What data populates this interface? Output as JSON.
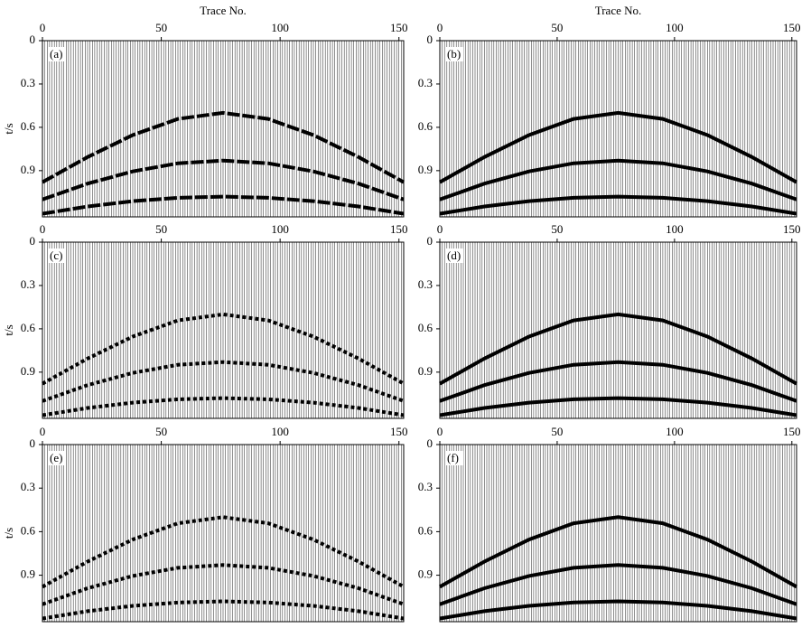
{
  "chart_data": [
    {
      "type": "wiggle",
      "title": "Trace No.",
      "ylabel": "t/s",
      "label": "(a)",
      "line_style": "dashed",
      "xlim": [
        0,
        152
      ],
      "xticks": [
        0,
        50,
        100,
        150
      ],
      "ylim": [
        0,
        1.22
      ],
      "yticks": [
        0,
        0.3,
        0.6,
        0.9
      ],
      "x": [
        0,
        19,
        38,
        57,
        76,
        95,
        114,
        133,
        152
      ],
      "series": [
        {
          "values": [
            0.98,
            0.806,
            0.654,
            0.542,
            0.5,
            0.542,
            0.654,
            0.806,
            0.98
          ]
        },
        {
          "values": [
            1.1,
            0.99,
            0.905,
            0.849,
            0.83,
            0.849,
            0.905,
            0.99,
            1.1
          ]
        },
        {
          "values": [
            1.198,
            1.148,
            1.111,
            1.088,
            1.08,
            1.088,
            1.111,
            1.148,
            1.198
          ]
        }
      ]
    },
    {
      "type": "wiggle",
      "title": "Trace No.",
      "label": "(b)",
      "line_style": "solid",
      "xlim": [
        0,
        152
      ],
      "xticks": [
        0,
        50,
        100,
        150
      ],
      "ylim": [
        0,
        1.22
      ],
      "yticks": [
        0,
        0.3,
        0.6,
        0.9
      ],
      "x": [
        0,
        19,
        38,
        57,
        76,
        95,
        114,
        133,
        152
      ],
      "series": [
        {
          "values": [
            0.98,
            0.806,
            0.654,
            0.542,
            0.5,
            0.542,
            0.654,
            0.806,
            0.98
          ]
        },
        {
          "values": [
            1.1,
            0.99,
            0.905,
            0.849,
            0.83,
            0.849,
            0.905,
            0.99,
            1.1
          ]
        },
        {
          "values": [
            1.198,
            1.148,
            1.111,
            1.088,
            1.08,
            1.088,
            1.111,
            1.148,
            1.198
          ]
        }
      ]
    },
    {
      "type": "wiggle",
      "ylabel": "t/s",
      "label": "(c)",
      "line_style": "dotted",
      "xlim": [
        0,
        152
      ],
      "xticks": [
        0,
        50,
        100,
        150
      ],
      "ylim": [
        0,
        1.22
      ],
      "yticks": [
        0,
        0.3,
        0.6,
        0.9
      ],
      "x": [
        0,
        19,
        38,
        57,
        76,
        95,
        114,
        133,
        152
      ],
      "series": [
        {
          "values": [
            0.98,
            0.806,
            0.654,
            0.542,
            0.5,
            0.542,
            0.654,
            0.806,
            0.98
          ]
        },
        {
          "values": [
            1.1,
            0.99,
            0.905,
            0.849,
            0.83,
            0.849,
            0.905,
            0.99,
            1.1
          ]
        },
        {
          "values": [
            1.198,
            1.148,
            1.111,
            1.088,
            1.08,
            1.088,
            1.111,
            1.148,
            1.198
          ]
        }
      ]
    },
    {
      "type": "wiggle",
      "label": "(d)",
      "line_style": "solid",
      "xlim": [
        0,
        152
      ],
      "xticks": [
        0,
        50,
        100,
        150
      ],
      "ylim": [
        0,
        1.22
      ],
      "yticks": [
        0,
        0.3,
        0.6,
        0.9
      ],
      "x": [
        0,
        19,
        38,
        57,
        76,
        95,
        114,
        133,
        152
      ],
      "series": [
        {
          "values": [
            0.98,
            0.806,
            0.654,
            0.542,
            0.5,
            0.542,
            0.654,
            0.806,
            0.98
          ]
        },
        {
          "values": [
            1.1,
            0.99,
            0.905,
            0.849,
            0.83,
            0.849,
            0.905,
            0.99,
            1.1
          ]
        },
        {
          "values": [
            1.198,
            1.148,
            1.111,
            1.088,
            1.08,
            1.088,
            1.111,
            1.148,
            1.198
          ]
        }
      ]
    },
    {
      "type": "wiggle",
      "ylabel": "t/s",
      "label": "(e)",
      "line_style": "dotted",
      "xlim": [
        0,
        152
      ],
      "xticks": [
        0,
        50,
        100,
        150
      ],
      "ylim": [
        0,
        1.22
      ],
      "yticks": [
        0,
        0.3,
        0.6,
        0.9
      ],
      "x": [
        0,
        19,
        38,
        57,
        76,
        95,
        114,
        133,
        152
      ],
      "series": [
        {
          "values": [
            0.98,
            0.806,
            0.654,
            0.542,
            0.5,
            0.542,
            0.654,
            0.806,
            0.98
          ]
        },
        {
          "values": [
            1.1,
            0.99,
            0.905,
            0.849,
            0.83,
            0.849,
            0.905,
            0.99,
            1.1
          ]
        },
        {
          "values": [
            1.198,
            1.148,
            1.111,
            1.088,
            1.08,
            1.088,
            1.111,
            1.148,
            1.198
          ]
        }
      ]
    },
    {
      "type": "wiggle",
      "label": "(f)",
      "line_style": "solid",
      "xlim": [
        0,
        152
      ],
      "xticks": [
        0,
        50,
        100,
        150
      ],
      "ylim": [
        0,
        1.22
      ],
      "yticks": [
        0,
        0.3,
        0.6,
        0.9
      ],
      "x": [
        0,
        19,
        38,
        57,
        76,
        95,
        114,
        133,
        152
      ],
      "series": [
        {
          "values": [
            0.98,
            0.806,
            0.654,
            0.542,
            0.5,
            0.542,
            0.654,
            0.806,
            0.98
          ]
        },
        {
          "values": [
            1.1,
            0.99,
            0.905,
            0.849,
            0.83,
            0.849,
            0.905,
            0.99,
            1.1
          ]
        },
        {
          "values": [
            1.198,
            1.148,
            1.111,
            1.088,
            1.08,
            1.088,
            1.111,
            1.148,
            1.198
          ]
        }
      ]
    }
  ]
}
